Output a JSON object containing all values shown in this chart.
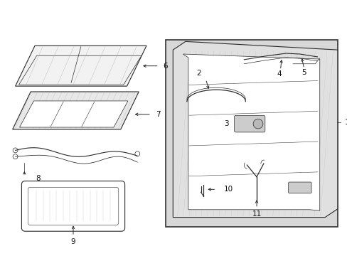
{
  "bg_color": "#ffffff",
  "fig_width": 4.89,
  "fig_height": 3.6,
  "dpi": 100,
  "line_color": "#2a2a2a",
  "gray_fill": "#d8d8d8",
  "light_gray": "#eeeeee"
}
